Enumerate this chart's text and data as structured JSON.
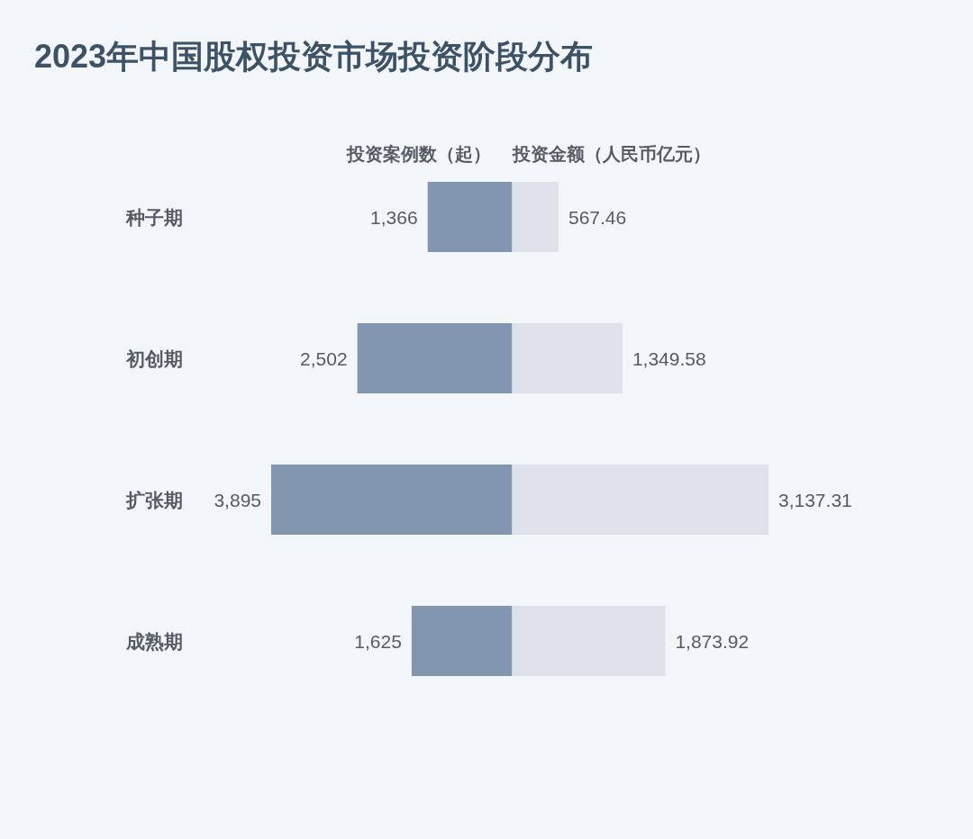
{
  "chart_data": [
    {
      "type": "bar",
      "orientation": "horizontal",
      "title": "2023年中国股权投资市场投资阶段分布",
      "subtitle": "投资案例数（起）",
      "categories": [
        "种子期",
        "初创期",
        "扩张期",
        "成熟期"
      ],
      "xlim": [
        3895,
        0
      ],
      "series": [
        {
          "color": "#8396b0",
          "values": [
            1366,
            2502,
            3895,
            1625
          ],
          "value_labels": [
            "1,366",
            "2,502",
            "3,895",
            "1,625"
          ]
        }
      ]
    },
    {
      "type": "bar",
      "orientation": "horizontal",
      "subtitle": "投资金额（人民币亿元）",
      "categories": [
        null,
        null,
        null,
        null
      ],
      "xlim": [
        0,
        3137.31
      ],
      "series": [
        {
          "color": "#dde1ea",
          "values": [
            567.46,
            1349.58,
            3137.31,
            1873.92
          ],
          "value_labels": [
            "567.46",
            "1,349.58",
            "3,137.31",
            "1,873.92"
          ]
        }
      ]
    }
  ]
}
